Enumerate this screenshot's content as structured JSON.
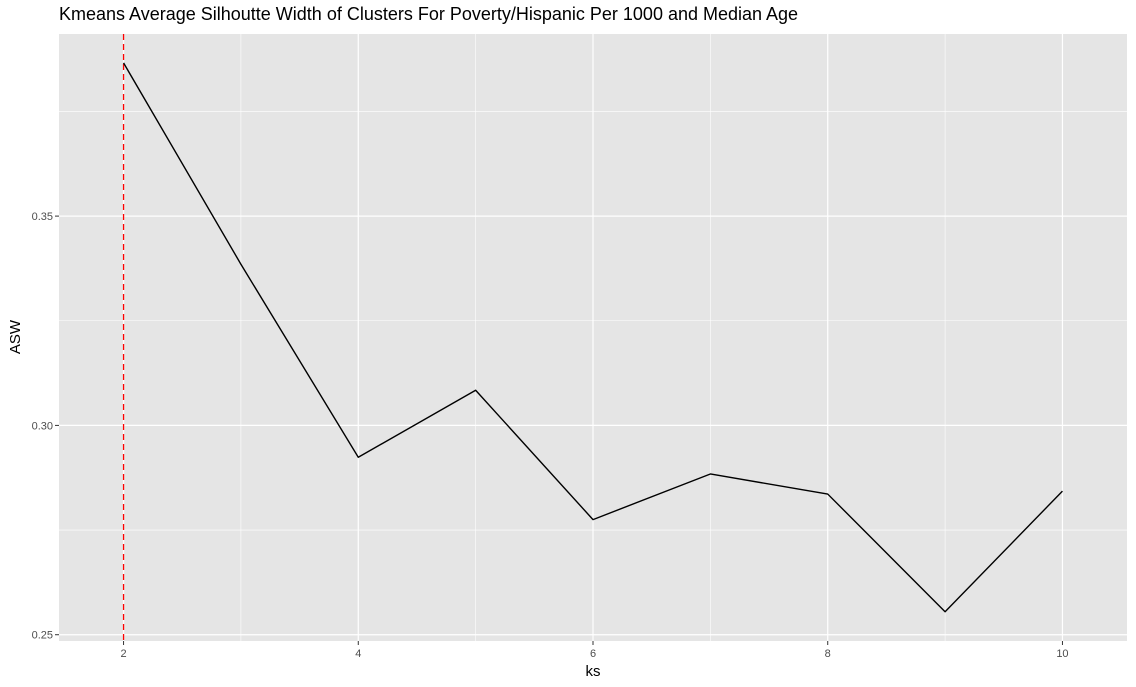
{
  "chart_data": {
    "type": "line",
    "title": "Kmeans Average Silhoutte Width of Clusters For Poverty/Hispanic Per 1000 and Median Age",
    "xlabel": "ks",
    "ylabel": "ASW",
    "x": [
      2,
      3,
      4,
      5,
      6,
      7,
      8,
      9,
      10
    ],
    "series": [
      {
        "values": [
          0.3866,
          0.3385,
          0.2924,
          0.3084,
          0.2775,
          0.2884,
          0.2836,
          0.2555,
          0.2843
        ]
      }
    ],
    "xlim": [
      1.45,
      10.55
    ],
    "ylim": [
      0.2485,
      0.3935
    ],
    "x_ticks": [
      2,
      4,
      6,
      8,
      10
    ],
    "x_tick_labels": [
      "2",
      "4",
      "6",
      "8",
      "10"
    ],
    "y_ticks": [
      0.25,
      0.3,
      0.35
    ],
    "y_tick_labels": [
      "0.25",
      "0.30",
      "0.35"
    ],
    "vline": {
      "x": 2,
      "color": "#ff0000",
      "style": "dashed"
    },
    "grid": true,
    "colors": {
      "panel": "#e5e5e5",
      "grid": "#ffffff",
      "line": "#000000",
      "tick_text": "#4d4d4d",
      "vline": "#ff0000"
    }
  }
}
